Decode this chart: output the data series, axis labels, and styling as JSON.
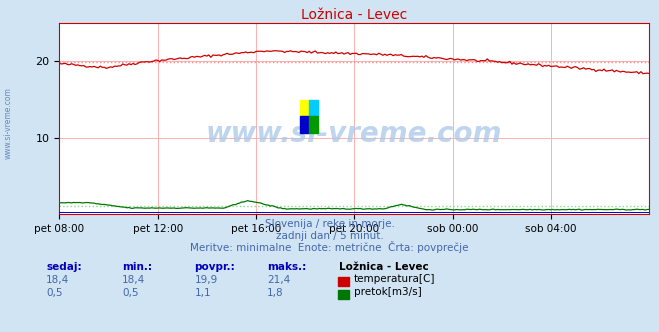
{
  "title": "Ložnica - Levec",
  "bg_color": "#d0e4f4",
  "plot_bg_color": "#ffffff",
  "grid_color": "#ffb0b0",
  "x_labels": [
    "pet 08:00",
    "pet 12:00",
    "pet 16:00",
    "pet 20:00",
    "sob 00:00",
    "sob 04:00"
  ],
  "x_ticks_norm": [
    0.0,
    0.1667,
    0.3333,
    0.5,
    0.6667,
    0.8333
  ],
  "ylim": [
    0,
    25
  ],
  "yticks": [
    10,
    20
  ],
  "temp_color": "#cc0000",
  "flow_color": "#007700",
  "height_color": "#0000cc",
  "avg_temp_color": "#ff8888",
  "avg_flow_color": "#88dd88",
  "temp_avg": 19.9,
  "flow_avg": 1.1,
  "watermark": "www.si-vreme.com",
  "subtitle1": "Slovenija / reke in morje.",
  "subtitle2": "zadnji dan / 5 minut.",
  "subtitle3": "Meritve: minimalne  Enote: metrične  Črta: povprečje",
  "legend_title": "Ložnica - Levec",
  "legend_label1": "temperatura[C]",
  "legend_label2": "pretok[m3/s]",
  "table_headers": [
    "sedaj:",
    "min.:",
    "povpr.:",
    "maks.:"
  ],
  "table_row1": [
    "18,4",
    "18,4",
    "19,9",
    "21,4"
  ],
  "table_row2": [
    "0,5",
    "0,5",
    "1,1",
    "1,8"
  ],
  "left_label": "www.si-vreme.com",
  "text_color": "#4466aa",
  "header_color": "#0000bb",
  "n_points": 289
}
